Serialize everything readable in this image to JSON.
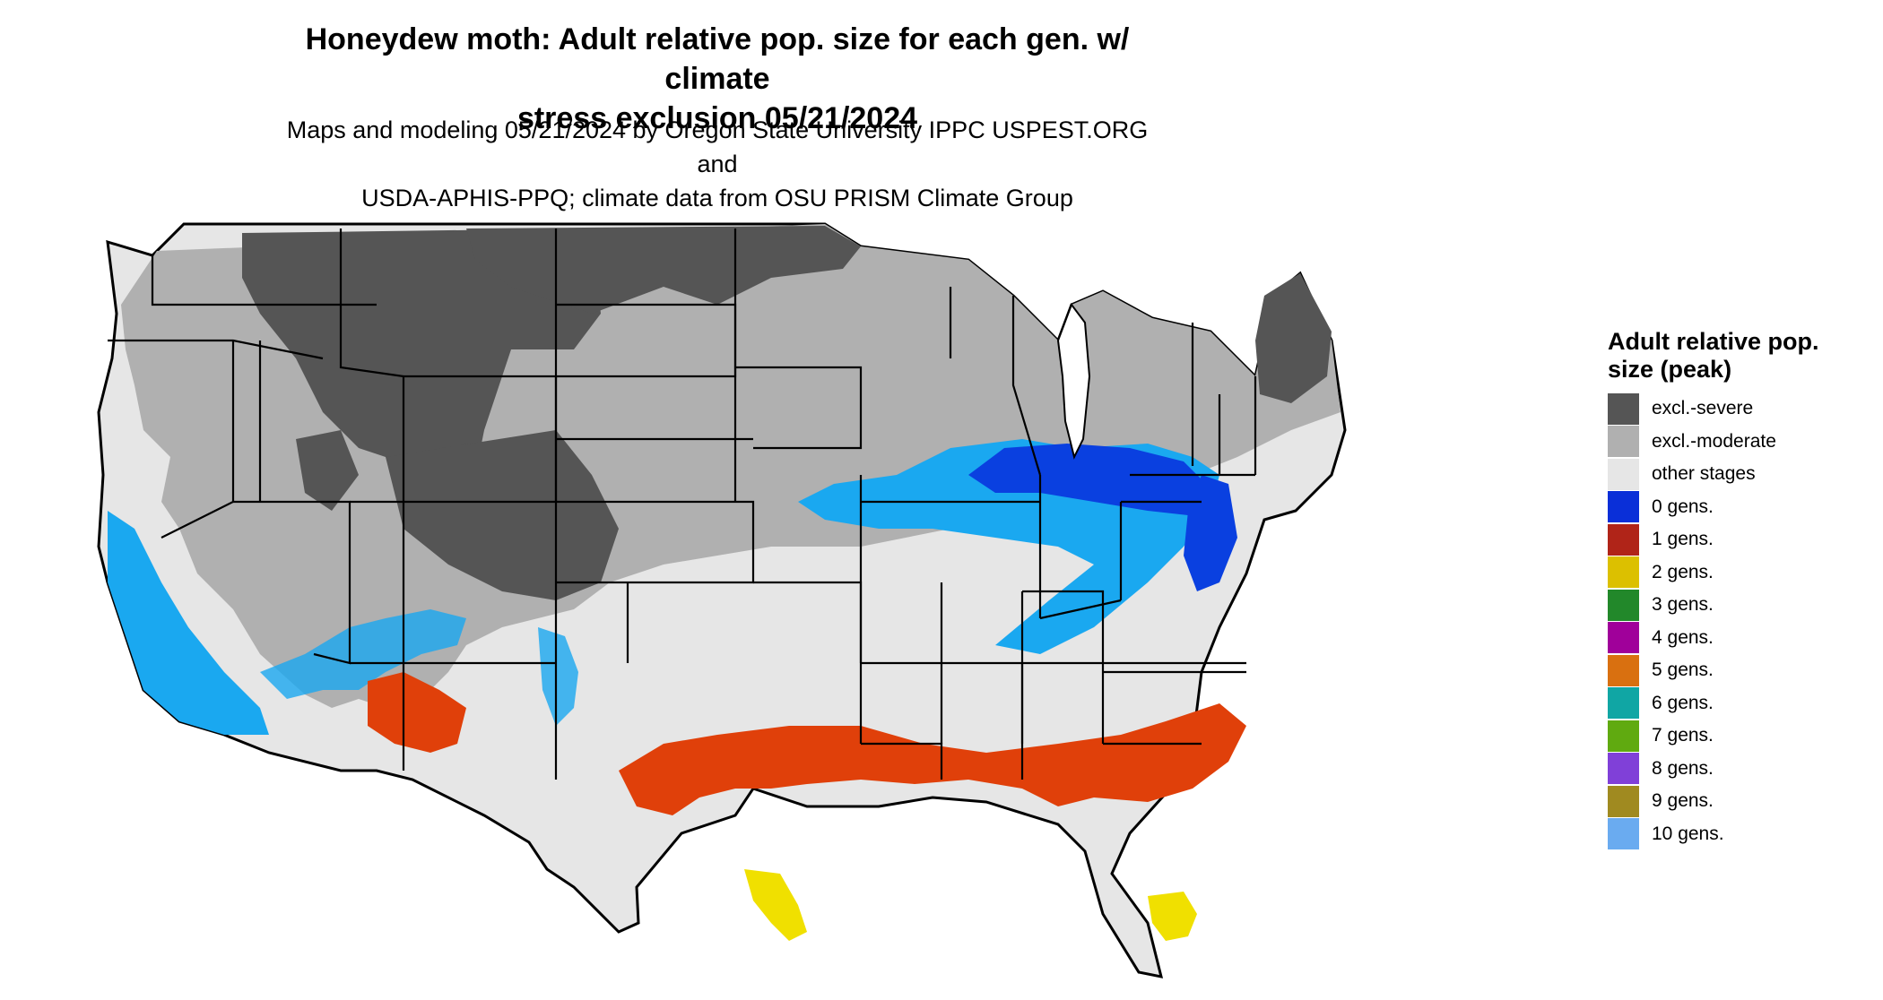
{
  "title_line1": "Honeydew moth: Adult relative pop. size for each gen. w/ climate",
  "title_line2": "stress exclusion 05/21/2024",
  "subtitle_line1": "Maps and modeling 05/21/2024 by Oregon State University IPPC USPEST.ORG and",
  "subtitle_line2": "USDA-APHIS-PPQ; climate data from OSU PRISM Climate Group",
  "legend": {
    "title": "Adult relative pop. size (peak)",
    "items": [
      {
        "label": "excl.-severe",
        "color": "#555555"
      },
      {
        "label": "excl.-moderate",
        "color": "#b0b0b0"
      },
      {
        "label": "other stages",
        "color": "#e6e6e6"
      },
      {
        "label": "0 gens.",
        "color": "#0a2fd8"
      },
      {
        "label": "1 gens.",
        "color": "#b02418"
      },
      {
        "label": "2 gens.",
        "color": "#dcc000"
      },
      {
        "label": "3 gens.",
        "color": "#22882a"
      },
      {
        "label": "4 gens.",
        "color": "#a0009a"
      },
      {
        "label": "5 gens.",
        "color": "#d97010"
      },
      {
        "label": "6 gens.",
        "color": "#10a6a4"
      },
      {
        "label": "7 gens.",
        "color": "#60aa10"
      },
      {
        "label": "8 gens.",
        "color": "#8040d8"
      },
      {
        "label": "9 gens.",
        "color": "#a08a20"
      },
      {
        "label": "10 gens.",
        "color": "#6aabf0"
      }
    ]
  },
  "map_colors": {
    "severe": "#555555",
    "moderate": "#b0b0b0",
    "other": "#e6e6e6",
    "blue_dark": "#0a40e0",
    "blue_light": "#1aa8f0",
    "red": "#e0400a",
    "yellow": "#f0e000"
  }
}
